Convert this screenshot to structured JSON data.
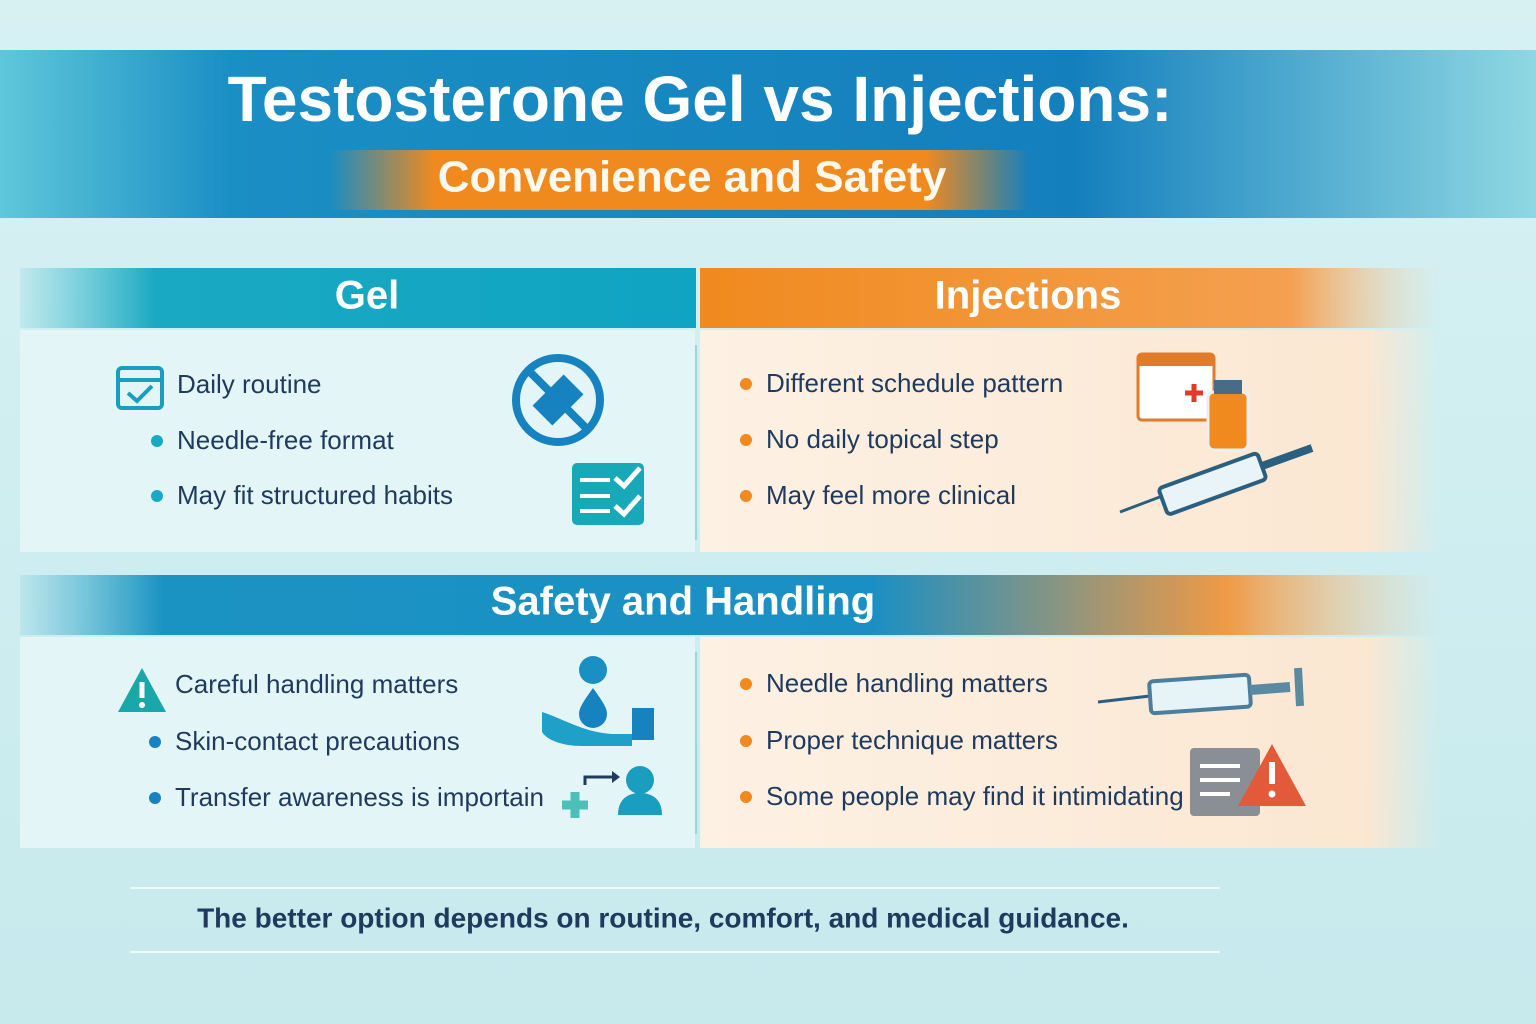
{
  "header": {
    "title": "Testosterone Gel vs Injections:",
    "subtitle": "Convenience and Safety"
  },
  "comparison": {
    "gel": {
      "heading": "Gel",
      "items": [
        "Daily routine",
        "Needle-free format",
        "May fit structured habits"
      ]
    },
    "injections": {
      "heading": "Injections",
      "items": [
        "Different schedule pattern",
        "No daily topical step",
        "May feel more clinical"
      ]
    }
  },
  "safety": {
    "heading": "Safety and Handling",
    "gel_items": [
      "Careful handling matters",
      "Skin-contact precautions",
      "Transfer awareness is importain"
    ],
    "injection_items": [
      "Needle handling matters",
      "Proper technique matters",
      "Some people may find it intimidating"
    ]
  },
  "footer": "The better option depends on routine, comfort, and medical guidance."
}
